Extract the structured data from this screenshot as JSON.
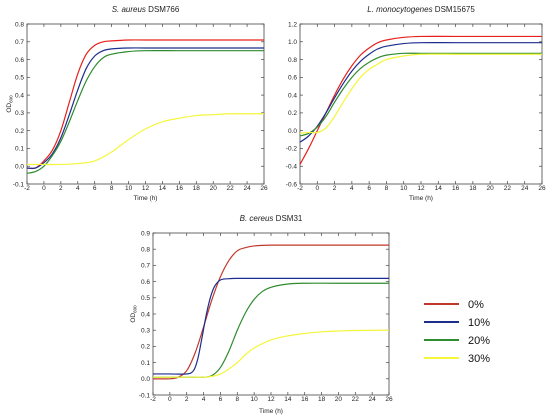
{
  "chart_data": [
    {
      "type": "line",
      "title_italic": "S. aureus",
      "title_rest": " DSM766",
      "xlabel": "Time (h)",
      "ylabel_main": "OD",
      "ylabel_sub": "600",
      "xlim": [
        -2,
        26
      ],
      "ylim": [
        -0.1,
        0.8
      ],
      "xticks": [
        "-2",
        "0",
        "2",
        "4",
        "6",
        "8",
        "10",
        "12",
        "14",
        "16",
        "18",
        "20",
        "22",
        "24",
        "26"
      ],
      "yticks": [
        "-0.1",
        "0.0",
        "0.1",
        "0.2",
        "0.3",
        "0.4",
        "0.5",
        "0.6",
        "0.7",
        "0.8"
      ],
      "series": [
        {
          "name": "0%",
          "color": "#e8201c",
          "x": [
            -2,
            -1,
            0,
            1,
            2,
            3,
            4,
            5,
            6,
            7,
            8,
            10,
            12,
            16,
            20,
            26
          ],
          "y": [
            -0.01,
            -0.01,
            0.03,
            0.09,
            0.2,
            0.36,
            0.52,
            0.63,
            0.68,
            0.7,
            0.705,
            0.71,
            0.71,
            0.71,
            0.71,
            0.71
          ]
        },
        {
          "name": "10%",
          "color": "#1c2d8c",
          "x": [
            -2,
            -1,
            0,
            1,
            2,
            3,
            4,
            5,
            6,
            7,
            8,
            10,
            12,
            16,
            20,
            26
          ],
          "y": [
            -0.01,
            -0.01,
            0.02,
            0.07,
            0.16,
            0.29,
            0.43,
            0.55,
            0.62,
            0.65,
            0.66,
            0.665,
            0.665,
            0.665,
            0.665,
            0.665
          ]
        },
        {
          "name": "20%",
          "color": "#2e8b2e",
          "x": [
            -2,
            -1,
            0,
            1,
            2,
            3,
            4,
            5,
            6,
            7,
            8,
            10,
            12,
            16,
            20,
            26
          ],
          "y": [
            -0.04,
            -0.03,
            0.0,
            0.06,
            0.14,
            0.25,
            0.37,
            0.48,
            0.56,
            0.61,
            0.63,
            0.645,
            0.65,
            0.65,
            0.65,
            0.65
          ]
        },
        {
          "name": "30%",
          "color": "#f5f53a",
          "x": [
            -2,
            -1,
            0,
            2,
            4,
            6,
            8,
            10,
            12,
            14,
            16,
            18,
            20,
            22,
            26
          ],
          "y": [
            0.01,
            0.01,
            0.01,
            0.01,
            0.015,
            0.03,
            0.08,
            0.15,
            0.21,
            0.25,
            0.27,
            0.285,
            0.29,
            0.295,
            0.295
          ]
        }
      ]
    },
    {
      "type": "line",
      "title_italic": "L. monocytogenes",
      "title_rest": " DSM15675",
      "xlabel": "Time (h)",
      "ylabel_main": "",
      "ylabel_sub": "",
      "xlim": [
        -2,
        26
      ],
      "ylim": [
        -0.6,
        1.2
      ],
      "xticks": [
        "-2",
        "0",
        "2",
        "4",
        "6",
        "8",
        "10",
        "12",
        "14",
        "16",
        "18",
        "20",
        "22",
        "24",
        "26"
      ],
      "yticks": [
        "-0.6",
        "-0.4",
        "-0.2",
        "0.0",
        "0.2",
        "0.4",
        "0.6",
        "0.8",
        "1.0",
        "1.2"
      ],
      "series": [
        {
          "name": "0%",
          "color": "#e8201c",
          "x": [
            -2,
            -1,
            0,
            1,
            2,
            3,
            4,
            5,
            6,
            7,
            8,
            10,
            12,
            16,
            20,
            26
          ],
          "y": [
            -0.38,
            -0.2,
            0.0,
            0.2,
            0.4,
            0.58,
            0.73,
            0.85,
            0.93,
            0.99,
            1.02,
            1.05,
            1.06,
            1.06,
            1.06,
            1.06
          ]
        },
        {
          "name": "10%",
          "color": "#1c2d8c",
          "x": [
            -2,
            -1,
            0,
            1,
            2,
            3,
            4,
            5,
            6,
            7,
            8,
            10,
            12,
            16,
            20,
            26
          ],
          "y": [
            -0.13,
            -0.06,
            0.05,
            0.2,
            0.37,
            0.53,
            0.67,
            0.78,
            0.86,
            0.92,
            0.95,
            0.98,
            0.99,
            0.99,
            0.99,
            0.99
          ]
        },
        {
          "name": "20%",
          "color": "#2e8b2e",
          "x": [
            -2,
            -1,
            0,
            1,
            2,
            3,
            4,
            5,
            6,
            7,
            8,
            10,
            12,
            16,
            20,
            26
          ],
          "y": [
            -0.06,
            -0.03,
            0.04,
            0.16,
            0.32,
            0.47,
            0.6,
            0.7,
            0.77,
            0.82,
            0.85,
            0.87,
            0.87,
            0.87,
            0.87,
            0.87
          ]
        },
        {
          "name": "30%",
          "color": "#f5f53a",
          "x": [
            -2,
            -1,
            0,
            1,
            2,
            3,
            4,
            5,
            6,
            7,
            8,
            10,
            12,
            16,
            20,
            26
          ],
          "y": [
            -0.03,
            -0.02,
            -0.02,
            0.03,
            0.16,
            0.32,
            0.47,
            0.6,
            0.69,
            0.75,
            0.8,
            0.84,
            0.86,
            0.86,
            0.86,
            0.86
          ]
        }
      ]
    },
    {
      "type": "line",
      "title_italic": "B. cereus",
      "title_rest": " DSM31",
      "xlabel": "Time (h)",
      "ylabel_main": "OD",
      "ylabel_sub": "600",
      "xlim": [
        -2,
        26
      ],
      "ylim": [
        -0.1,
        0.9
      ],
      "xticks": [
        "-2",
        "0",
        "2",
        "4",
        "6",
        "8",
        "10",
        "12",
        "14",
        "16",
        "18",
        "20",
        "22",
        "24",
        "26"
      ],
      "yticks": [
        "-0.1",
        "0.0",
        "0.1",
        "0.2",
        "0.3",
        "0.4",
        "0.5",
        "0.6",
        "0.7",
        "0.8",
        "0.9"
      ],
      "series": [
        {
          "name": "0%",
          "color": "#c0392b",
          "x": [
            -2,
            0,
            1,
            2,
            3,
            4,
            5,
            6,
            7,
            8,
            9,
            10,
            12,
            16,
            20,
            26
          ],
          "y": [
            0.0,
            0.0,
            0.01,
            0.05,
            0.16,
            0.32,
            0.49,
            0.63,
            0.73,
            0.79,
            0.81,
            0.82,
            0.825,
            0.825,
            0.825,
            0.825
          ]
        },
        {
          "name": "10%",
          "color": "#1c2d8c",
          "x": [
            -2,
            0,
            2,
            2.8,
            3.3,
            3.8,
            4.3,
            4.8,
            5.3,
            6,
            7,
            8,
            10,
            14,
            20,
            26
          ],
          "y": [
            0.03,
            0.03,
            0.03,
            0.05,
            0.12,
            0.25,
            0.39,
            0.5,
            0.57,
            0.61,
            0.618,
            0.62,
            0.62,
            0.62,
            0.62,
            0.62
          ]
        },
        {
          "name": "20%",
          "color": "#2e8b2e",
          "x": [
            -2,
            0,
            2,
            4,
            5,
            6,
            7,
            8,
            9,
            10,
            11,
            12,
            14,
            16,
            20,
            26
          ],
          "y": [
            0.01,
            0.01,
            0.01,
            0.01,
            0.02,
            0.07,
            0.17,
            0.3,
            0.41,
            0.49,
            0.54,
            0.565,
            0.585,
            0.59,
            0.59,
            0.59
          ]
        },
        {
          "name": "30%",
          "color": "#f5f53a",
          "x": [
            -2,
            0,
            2,
            4,
            5,
            6,
            7,
            8,
            9,
            10,
            12,
            14,
            16,
            18,
            20,
            22,
            26
          ],
          "y": [
            0.01,
            0.01,
            0.01,
            0.01,
            0.015,
            0.03,
            0.06,
            0.1,
            0.15,
            0.19,
            0.24,
            0.265,
            0.28,
            0.29,
            0.295,
            0.298,
            0.3
          ]
        }
      ]
    }
  ],
  "legend": {
    "items": [
      {
        "label": "0%",
        "color": "#c0392b"
      },
      {
        "label": "10%",
        "color": "#1c2d8c"
      },
      {
        "label": "20%",
        "color": "#2e8b2e"
      },
      {
        "label": "30%",
        "color": "#f5f53a"
      }
    ]
  }
}
